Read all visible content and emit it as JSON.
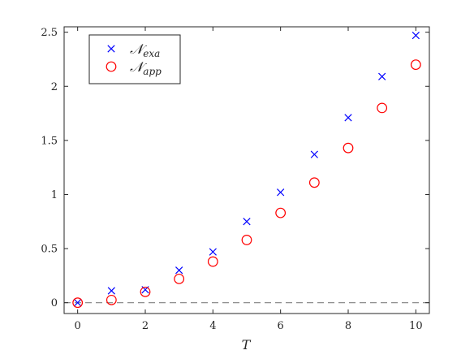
{
  "chart_data": {
    "type": "scatter",
    "title": "",
    "xlabel": "T",
    "ylabel": "",
    "xlim": [
      -0.4,
      10.4
    ],
    "ylim": [
      -0.1,
      2.55
    ],
    "xticks": [
      0,
      2,
      4,
      6,
      8,
      10
    ],
    "yticks": [
      0,
      0.5,
      1,
      1.5,
      2,
      2.5
    ],
    "xtick_labels": [
      "0",
      "2",
      "4",
      "6",
      "8",
      "10"
    ],
    "ytick_labels": [
      "0",
      "0.5",
      "1",
      "1.5",
      "2",
      "2.5"
    ],
    "grid": false,
    "reference_line": {
      "y": 0,
      "style": "dashed",
      "color": "#808080"
    },
    "legend": {
      "position": "top-left",
      "entries": [
        {
          "symbol": "𝒩",
          "subscript": "exa",
          "marker": "x",
          "color": "#0000ff"
        },
        {
          "symbol": "𝒩",
          "subscript": "app",
          "marker": "o",
          "color": "#ff0000"
        }
      ]
    },
    "series": [
      {
        "marker": "x",
        "color": "#0000ff",
        "x": [
          0,
          1,
          2,
          3,
          4,
          5,
          6,
          7,
          8,
          9,
          10
        ],
        "y": [
          0.0,
          0.11,
          0.12,
          0.3,
          0.47,
          0.75,
          1.02,
          1.37,
          1.71,
          2.09,
          2.47
        ]
      },
      {
        "marker": "o",
        "color": "#ff0000",
        "x": [
          0,
          1,
          2,
          3,
          4,
          5,
          6,
          7,
          8,
          9,
          10
        ],
        "y": [
          0.0,
          0.025,
          0.1,
          0.22,
          0.38,
          0.58,
          0.83,
          1.11,
          1.43,
          1.8,
          2.2
        ]
      }
    ]
  }
}
